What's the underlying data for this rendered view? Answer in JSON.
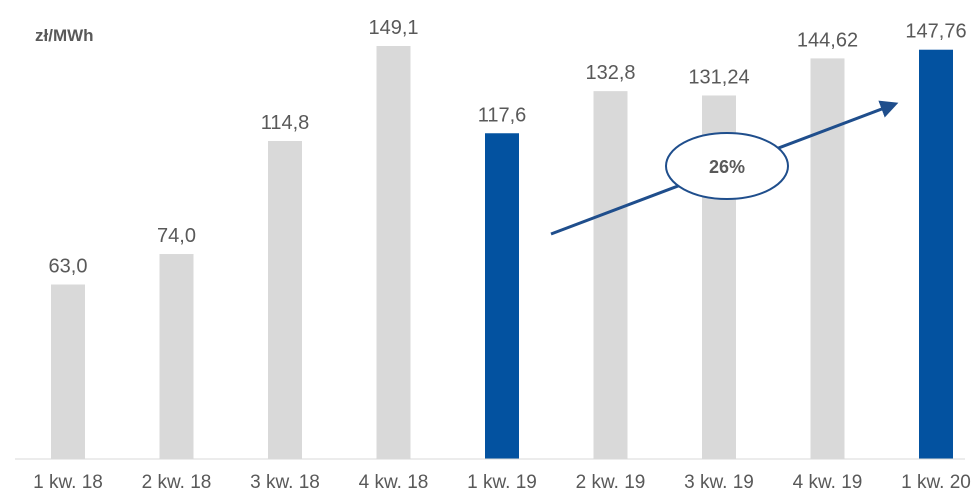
{
  "chart_data": {
    "type": "bar",
    "unit_label": "zł/MWh",
    "categories": [
      "1 kw. 18",
      "2 kw. 18",
      "3 kw. 18",
      "4 kw. 18",
      "1 kw. 19",
      "2 kw. 19",
      "3 kw. 19",
      "4 kw. 19",
      "1 kw. 20"
    ],
    "values": [
      63.0,
      74.0,
      114.8,
      149.1,
      117.6,
      132.8,
      131.24,
      144.62,
      147.76
    ],
    "value_labels": [
      "63,0",
      "74,0",
      "114,8",
      "149,1",
      "117,6",
      "132,8",
      "131,24",
      "144,62",
      "147,76"
    ],
    "highlighted": [
      "1 kw. 19",
      "1 kw. 20"
    ],
    "colors": {
      "default": "#d9d9d9",
      "highlight": "#0352a0",
      "arrow": "#1f4e8c",
      "text": "#595959"
    },
    "annotation": {
      "label": "26%",
      "from": "1 kw. 19",
      "to": "1 kw. 20"
    },
    "ylim": [
      0,
      160
    ],
    "grid": false,
    "legend": "none"
  }
}
